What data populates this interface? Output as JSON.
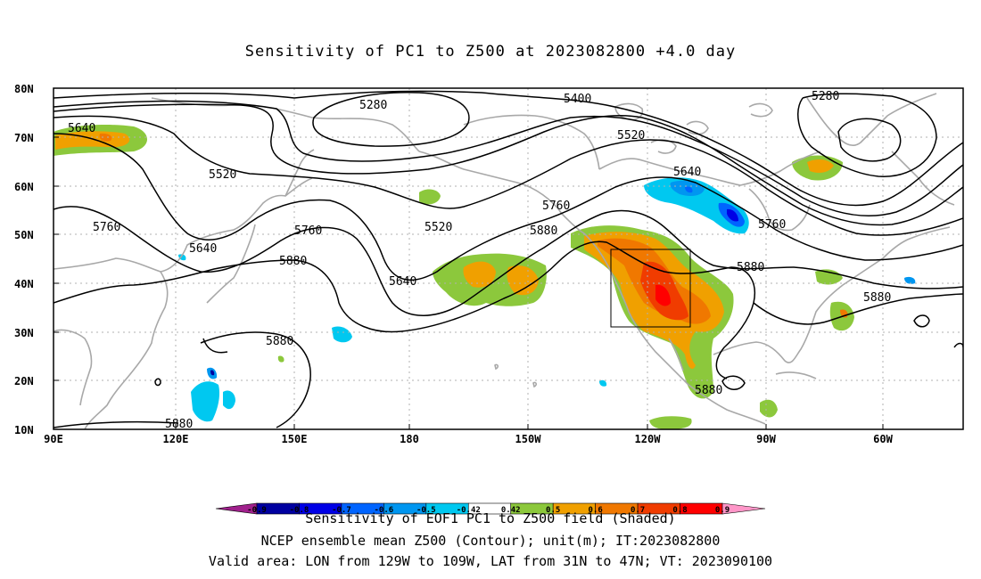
{
  "title": "Sensitivity of PC1 to Z500 at 2023082800 +4.0 day",
  "map": {
    "lat_labels": [
      "80N",
      "70N",
      "60N",
      "50N",
      "40N",
      "30N",
      "20N",
      "10N"
    ],
    "lon_labels": [
      "90E",
      "120E",
      "150E",
      "180",
      "150W",
      "120W",
      "90W",
      "60W"
    ],
    "region": "North Pacific / North America",
    "valid_box": {
      "lon": [
        "129W",
        "109W"
      ],
      "lat": [
        "31N",
        "47N"
      ]
    },
    "contour_labels": [
      {
        "text": "5280",
        "id": "c5280-a"
      },
      {
        "text": "5400",
        "id": "c5400-a"
      },
      {
        "text": "5280",
        "id": "c5280-b"
      },
      {
        "text": "5640",
        "id": "c5640-a"
      },
      {
        "text": "5520",
        "id": "c5520-a"
      },
      {
        "text": "5520",
        "id": "c5520-b"
      },
      {
        "text": "5640",
        "id": "c5640-b"
      },
      {
        "text": "5760",
        "id": "c5760-a"
      },
      {
        "text": "5760",
        "id": "c5760-b"
      },
      {
        "text": "5520",
        "id": "c5520-c"
      },
      {
        "text": "5760",
        "id": "c5760-c"
      },
      {
        "text": "5880",
        "id": "c5880-a"
      },
      {
        "text": "5640",
        "id": "c5640-c"
      },
      {
        "text": "5760",
        "id": "c5760-d"
      },
      {
        "text": "5880",
        "id": "c5880-b"
      },
      {
        "text": "5640",
        "id": "c5640-d"
      },
      {
        "text": "5880",
        "id": "c5880-c"
      },
      {
        "text": "5880",
        "id": "c5880-d"
      },
      {
        "text": "5880",
        "id": "c5880-e"
      },
      {
        "text": "5880",
        "id": "c5880-f"
      },
      {
        "text": "5880",
        "id": "c5880-g"
      }
    ]
  },
  "colorbar": {
    "levels": [
      "-0.9",
      "-0.8",
      "-0.7",
      "-0.6",
      "-0.5",
      "-0.42",
      "0.42",
      "0.5",
      "0.6",
      "0.7",
      "0.8",
      "0.9"
    ],
    "colors": [
      "#a0208c",
      "#0000a0",
      "#0000e6",
      "#0064ff",
      "#0096f0",
      "#00c8f0",
      "#ffffff",
      "#8cc83c",
      "#f0a000",
      "#f07800",
      "#f03c00",
      "#ff0000",
      "#ff96c8"
    ],
    "caption": "Sensitivity of EOF1 PC1 to Z500 field (Shaded)"
  },
  "footer": {
    "line1": "NCEP ensemble mean Z500 (Contour); unit(m); IT:2023082800",
    "line2": "Valid area: LON from 129W to 109W, LAT from 31N to 47N; VT: 2023090100"
  }
}
